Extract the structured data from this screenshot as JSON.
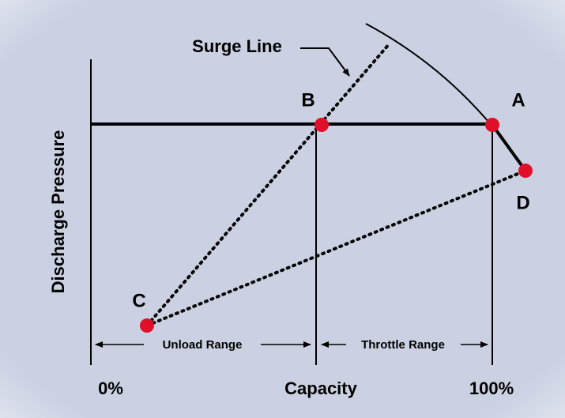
{
  "labels": {
    "surge_line": "Surge Line",
    "point_a": "A",
    "point_b": "B",
    "point_c": "C",
    "point_d": "D",
    "y_axis": "Discharge Pressure",
    "x_axis": "Capacity",
    "x_start": "0%",
    "x_end": "100%",
    "unload_range": "Unload Range",
    "throttle_range": "Throttle Range"
  }
}
